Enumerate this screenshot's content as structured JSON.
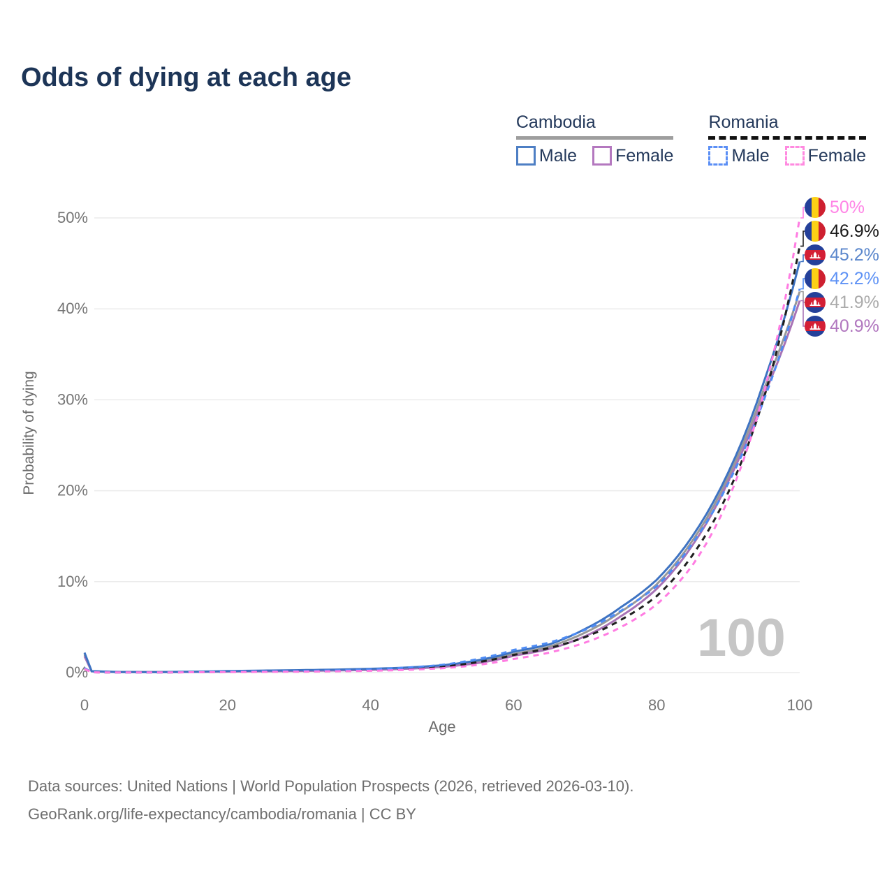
{
  "title": "Odds of dying at each age",
  "legend": {
    "groups": [
      {
        "country": "Cambodia",
        "line_style": "solid",
        "underline_color": "#9e9e9e",
        "items": [
          {
            "label": "Male",
            "box_color": "#4e7fc4",
            "dashed": false
          },
          {
            "label": "Female",
            "box_color": "#b478bf",
            "dashed": false
          }
        ]
      },
      {
        "country": "Romania",
        "line_style": "dashed",
        "underline_color": "#111111",
        "items": [
          {
            "label": "Male",
            "box_color": "#5b8ff5",
            "dashed": true
          },
          {
            "label": "Female",
            "box_color": "#ff8ae0",
            "dashed": true
          }
        ]
      }
    ]
  },
  "axes": {
    "x": {
      "label": "Age",
      "ticks": [
        0,
        20,
        40,
        60,
        80,
        100
      ]
    },
    "y": {
      "label": "Probability of dying",
      "ticks": [
        0,
        10,
        20,
        30,
        40,
        50
      ],
      "tick_suffix": "%"
    }
  },
  "watermark": "100",
  "end_labels": [
    {
      "value": "50%",
      "color": "#ff85e6",
      "flag": "romania",
      "series": "Romania Female"
    },
    {
      "value": "46.9%",
      "color": "#1a1a1a",
      "flag": "romania",
      "series": "Romania"
    },
    {
      "value": "45.2%",
      "color": "#5b87cc",
      "flag": "cambodia",
      "series": "Cambodia Male"
    },
    {
      "value": "42.2%",
      "color": "#5e92f5",
      "flag": "romania",
      "series": "Romania Male"
    },
    {
      "value": "41.9%",
      "color": "#ababab",
      "flag": "cambodia",
      "series": "Cambodia"
    },
    {
      "value": "40.9%",
      "color": "#b177bf",
      "flag": "cambodia",
      "series": "Cambodia Female"
    }
  ],
  "flag_colors": {
    "romania_blue": "#24409a",
    "romania_yellow": "#fcd116",
    "romania_red": "#ce2030",
    "cambodia_blue": "#24409a",
    "cambodia_red": "#d41f35",
    "cambodia_temple": "#ffffff"
  },
  "chart_data": {
    "type": "line",
    "title": "Odds of dying at each age",
    "xlabel": "Age",
    "ylabel": "Probability of dying",
    "xlim": [
      0,
      100
    ],
    "ylim_percent": [
      0,
      52
    ],
    "grid": "horizontal",
    "legend_position": "top-right",
    "x": [
      0,
      1,
      5,
      10,
      15,
      20,
      25,
      30,
      35,
      40,
      45,
      50,
      55,
      60,
      65,
      70,
      75,
      80,
      85,
      90,
      95,
      100
    ],
    "series": [
      {
        "name": "Cambodia",
        "color": "#999999",
        "dashed": false,
        "values": [
          2.0,
          0.15,
          0.065,
          0.055,
          0.085,
          0.14,
          0.18,
          0.22,
          0.28,
          0.36,
          0.48,
          0.71,
          1.2,
          2.05,
          2.85,
          4.4,
          6.7,
          9.7,
          14.5,
          21.5,
          31.2,
          41.9
        ],
        "end_value_percent": 41.9
      },
      {
        "name": "Cambodia Female",
        "color": "#a873b6",
        "dashed": false,
        "values": [
          1.8,
          0.13,
          0.06,
          0.05,
          0.07,
          0.11,
          0.14,
          0.18,
          0.23,
          0.3,
          0.42,
          0.62,
          1.05,
          1.85,
          2.6,
          4.0,
          6.2,
          9.2,
          14.0,
          21.0,
          30.5,
          40.9
        ],
        "end_value_percent": 40.9
      },
      {
        "name": "Cambodia Male",
        "color": "#3e73c2",
        "dashed": false,
        "values": [
          2.2,
          0.16,
          0.07,
          0.06,
          0.1,
          0.17,
          0.22,
          0.27,
          0.33,
          0.42,
          0.55,
          0.8,
          1.35,
          2.3,
          3.1,
          4.8,
          7.2,
          10.2,
          15.0,
          22.0,
          32.0,
          45.2
        ],
        "end_value_percent": 45.2
      },
      {
        "name": "Romania",
        "color": "#1f1f1f",
        "dashed": true,
        "values": [
          0.45,
          0.035,
          0.018,
          0.018,
          0.045,
          0.08,
          0.11,
          0.14,
          0.19,
          0.27,
          0.42,
          0.65,
          1.15,
          1.95,
          2.7,
          3.9,
          5.8,
          8.4,
          12.9,
          19.8,
          30.2,
          46.9
        ],
        "end_value_percent": 46.9
      },
      {
        "name": "Romania Male",
        "color": "#4e8cf5",
        "dashed": true,
        "values": [
          0.5,
          0.04,
          0.02,
          0.02,
          0.06,
          0.1,
          0.14,
          0.18,
          0.24,
          0.35,
          0.55,
          0.85,
          1.5,
          2.5,
          3.3,
          4.7,
          6.8,
          9.5,
          14.2,
          20.8,
          30.0,
          42.2
        ],
        "end_value_percent": 42.2
      },
      {
        "name": "Romania Female",
        "color": "#ff7ce2",
        "dashed": true,
        "values": [
          0.4,
          0.03,
          0.015,
          0.015,
          0.035,
          0.06,
          0.08,
          0.1,
          0.14,
          0.2,
          0.3,
          0.48,
          0.85,
          1.5,
          2.2,
          3.3,
          5.0,
          7.5,
          11.8,
          19.0,
          30.8,
          50.0
        ],
        "end_value_percent": 50.0
      }
    ]
  },
  "source": {
    "line1": "Data sources: United Nations | World Population Prospects (2026, retrieved 2026-03-10).",
    "line2": "GeoRank.org/life-expectancy/cambodia/romania | CC BY"
  }
}
